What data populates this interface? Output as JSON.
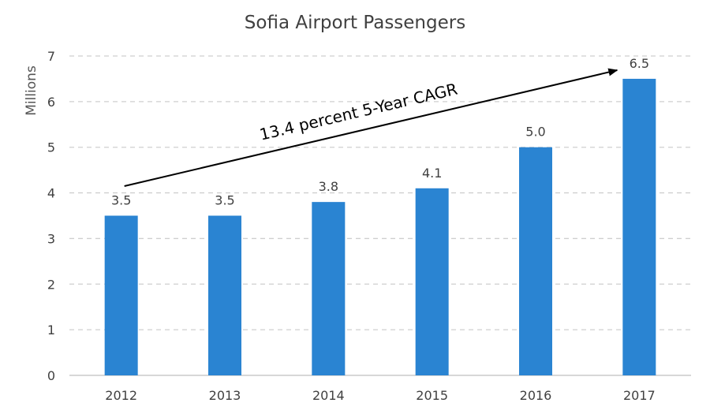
{
  "chart_data": {
    "type": "bar",
    "title": "Sofia Airport Passengers",
    "xlabel": "",
    "ylabel": "Millions",
    "categories": [
      "2012",
      "2013",
      "2014",
      "2015",
      "2016",
      "2017"
    ],
    "values": [
      3.5,
      3.5,
      3.8,
      4.1,
      5.0,
      6.5
    ],
    "data_labels": [
      "3.5",
      "3.5",
      "3.8",
      "4.1",
      "5.0",
      "6.5"
    ],
    "ylim": [
      0,
      7
    ],
    "yticks": [
      "0",
      "1",
      "2",
      "3",
      "4",
      "5",
      "6",
      "7"
    ],
    "grid": "horizontal dashed",
    "legend": "none",
    "annotation": {
      "text": "13.4 percent 5-Year CAGR",
      "arrow_from_category": "2012",
      "arrow_to_category": "2017"
    },
    "colors": {
      "bar": "#2a84d2",
      "grid": "#cfcfcf",
      "axis": "#bfbfbf",
      "text": "#404040"
    }
  }
}
